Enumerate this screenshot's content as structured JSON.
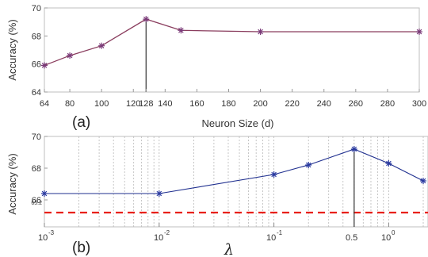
{
  "chart_data": [
    {
      "type": "line",
      "panel_label": "(a)",
      "xlabel": "Neuron Size (d)",
      "ylabel": "Accuracy (%)",
      "x_ticks": [
        "64",
        "80",
        "100",
        "120",
        "128",
        "140",
        "160",
        "180",
        "200",
        "220",
        "240",
        "260",
        "280",
        "300"
      ],
      "y_ticks": [
        "64",
        "66",
        "68",
        "70"
      ],
      "xlim": [
        64,
        300
      ],
      "ylim": [
        64,
        70
      ],
      "grid": false,
      "series": [
        {
          "x": [
            64,
            80,
            100,
            128,
            150,
            200,
            300
          ],
          "values": [
            65.9,
            66.6,
            67.3,
            69.2,
            68.4,
            68.3,
            68.3
          ]
        }
      ],
      "highlight_x": 128,
      "colors": {
        "line": "#8a3d5e",
        "marker": "#7a3a78"
      }
    },
    {
      "type": "line",
      "panel_label": "(b)",
      "xlabel": "λ",
      "ylabel": "Accuracy (%)",
      "x_scale": "log",
      "x_ticks": [
        "10",
        "-3",
        "10",
        "-2",
        "10",
        "-1",
        "0.5",
        "10",
        "0"
      ],
      "y_ticks": [
        "66",
        "68",
        "70"
      ],
      "reference_label": "65.2",
      "xlim": [
        0.001,
        2.2
      ],
      "ylim": [
        64.3,
        70
      ],
      "grid": "vertical minor",
      "series": [
        {
          "x": [
            0.001,
            0.01,
            0.1,
            0.2,
            0.5,
            1,
            2
          ],
          "values": [
            66.4,
            66.4,
            67.6,
            68.2,
            69.2,
            68.3,
            67.2
          ]
        }
      ],
      "reference_y": 65.2,
      "highlight_x": 0.5,
      "colors": {
        "line": "#1f2f8f",
        "marker": "#2a3aa0",
        "reference": "#e8201a"
      }
    }
  ]
}
